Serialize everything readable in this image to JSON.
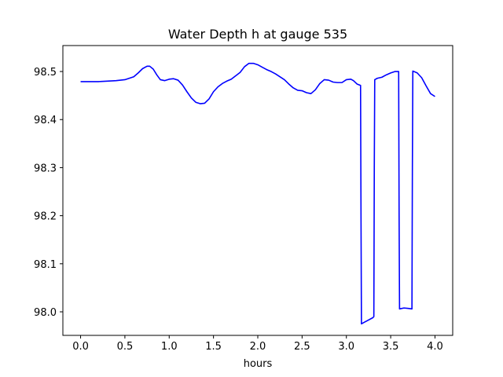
{
  "chart_data": {
    "type": "line",
    "title": "Water Depth h at gauge 535",
    "xlabel": "hours",
    "ylabel": "",
    "xlim": [
      -0.2,
      4.2
    ],
    "ylim": [
      97.951,
      98.554
    ],
    "xticks": [
      0.0,
      0.5,
      1.0,
      1.5,
      2.0,
      2.5,
      3.0,
      3.5,
      4.0
    ],
    "xtick_labels": [
      "0.0",
      "0.5",
      "1.0",
      "1.5",
      "2.0",
      "2.5",
      "3.0",
      "3.5",
      "4.0"
    ],
    "yticks": [
      98.0,
      98.1,
      98.2,
      98.3,
      98.4,
      98.5
    ],
    "ytick_labels": [
      "98.0",
      "98.1",
      "98.2",
      "98.3",
      "98.4",
      "98.5"
    ],
    "grid": false,
    "line_color": "#0000ff",
    "series": [
      {
        "x": [
          0.0,
          0.1,
          0.2,
          0.3,
          0.4,
          0.5,
          0.6,
          0.65,
          0.7,
          0.75,
          0.78,
          0.82,
          0.86,
          0.9,
          0.95,
          1.0,
          1.05,
          1.1,
          1.15,
          1.2,
          1.25,
          1.3,
          1.35,
          1.4,
          1.45,
          1.5,
          1.55,
          1.6,
          1.65,
          1.7,
          1.8,
          1.85,
          1.9,
          1.95,
          2.0,
          2.05,
          2.1,
          2.15,
          2.2,
          2.3,
          2.35,
          2.4,
          2.45,
          2.5,
          2.55,
          2.6,
          2.65,
          2.7,
          2.75,
          2.8,
          2.85,
          2.9,
          2.95,
          3.0,
          3.05,
          3.08,
          3.12,
          3.16,
          3.165,
          3.17,
          3.2,
          3.25,
          3.3,
          3.31,
          3.315,
          3.32,
          3.35,
          3.4,
          3.45,
          3.5,
          3.55,
          3.59,
          3.595,
          3.6,
          3.65,
          3.7,
          3.74,
          3.745,
          3.75,
          3.8,
          3.85,
          3.9,
          3.95,
          4.0
        ],
        "y": [
          98.479,
          98.479,
          98.479,
          98.48,
          98.481,
          98.483,
          98.489,
          98.497,
          98.506,
          98.511,
          98.511,
          98.505,
          98.493,
          98.483,
          98.481,
          98.484,
          98.485,
          98.482,
          98.472,
          98.458,
          98.445,
          98.436,
          98.433,
          98.434,
          98.443,
          98.458,
          98.468,
          98.475,
          98.48,
          98.484,
          98.498,
          98.51,
          98.517,
          98.517,
          98.514,
          98.509,
          98.504,
          98.5,
          98.495,
          98.483,
          98.474,
          98.466,
          98.461,
          98.46,
          98.456,
          98.454,
          98.462,
          98.475,
          98.483,
          98.482,
          98.478,
          98.477,
          98.477,
          98.483,
          98.484,
          98.481,
          98.474,
          98.471,
          98.2,
          97.975,
          97.978,
          97.983,
          97.988,
          97.99,
          98.3,
          98.483,
          98.486,
          98.488,
          98.493,
          98.497,
          98.5,
          98.5,
          98.2,
          98.006,
          98.008,
          98.007,
          98.006,
          98.3,
          98.501,
          98.497,
          98.487,
          98.47,
          98.454,
          98.448
        ]
      }
    ]
  }
}
